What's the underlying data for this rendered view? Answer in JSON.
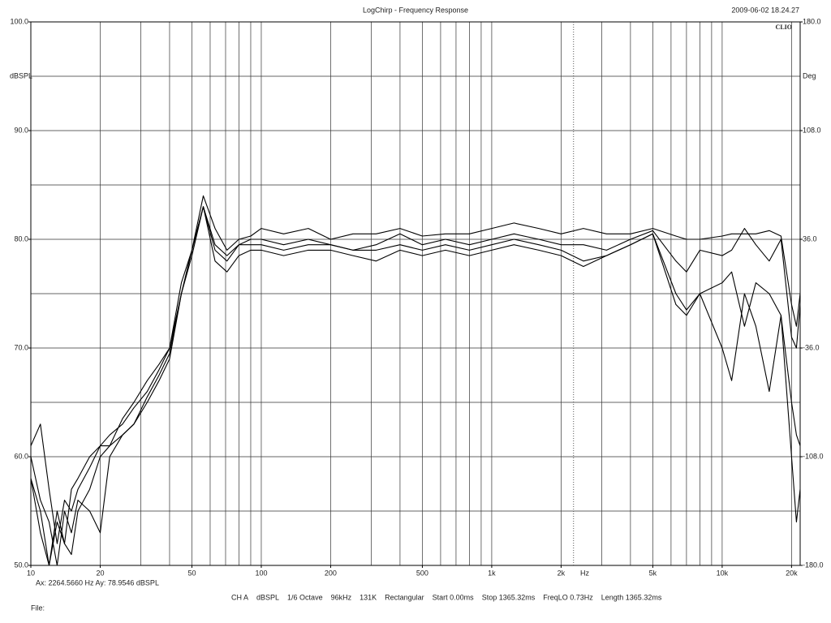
{
  "chart_data": {
    "type": "line",
    "title": "LogChirp - Frequency Response",
    "timestamp": "2009-06-02 18.24.27",
    "logo": "CLIO",
    "xlabel": "Hz",
    "ylabel": "dBSPL",
    "y2label": "Deg",
    "xscale": "log",
    "grid": true,
    "x": [
      10,
      11,
      12,
      13,
      14,
      15,
      16,
      18,
      20,
      22,
      25,
      28,
      32,
      36,
      40,
      45,
      50,
      56,
      63,
      71,
      80,
      90,
      100,
      125,
      160,
      200,
      250,
      315,
      400,
      500,
      630,
      800,
      1000,
      1250,
      1600,
      2000,
      2500,
      3150,
      4000,
      5000,
      6300,
      7000,
      8000,
      10000,
      11000,
      12500,
      14000,
      16000,
      18000,
      20000,
      21000,
      21800
    ],
    "series": [
      {
        "color": "#000000",
        "values": [
          61,
          63,
          57,
          52,
          56,
          55,
          57,
          59,
          61,
          61,
          63.5,
          65,
          67,
          68.5,
          70,
          76,
          79,
          84,
          81,
          79,
          80,
          80.3,
          81,
          80.5,
          81,
          80,
          80.5,
          80.5,
          81,
          80.3,
          80.5,
          80.5,
          81,
          81.5,
          81,
          80.5,
          81,
          80.5,
          80.5,
          81,
          80.3,
          80,
          80,
          80.3,
          80.5,
          80.5,
          80.5,
          80.8,
          80.3,
          74,
          72,
          75
        ]
      },
      {
        "color": "#000000",
        "values": [
          58,
          55,
          50,
          54,
          52,
          57,
          58,
          60,
          61,
          62,
          63,
          64.5,
          66,
          68,
          70,
          75,
          79,
          83,
          79.5,
          78.5,
          79.5,
          80,
          80,
          79.5,
          80,
          79.5,
          79,
          79.5,
          80.5,
          79.5,
          80,
          79.5,
          80,
          80.5,
          80,
          79.5,
          79.5,
          79,
          80,
          80.8,
          78,
          77,
          79,
          78.5,
          79,
          81,
          79.5,
          78,
          80,
          71,
          70,
          74
        ]
      },
      {
        "color": "#000000",
        "values": [
          60,
          56,
          54,
          50,
          55,
          53,
          56,
          55,
          53,
          60,
          62,
          63,
          65,
          67,
          69,
          75,
          79,
          83,
          79,
          78,
          79.5,
          79.5,
          79.5,
          79,
          79.5,
          79.5,
          79,
          79,
          79.5,
          79,
          79.5,
          79,
          79.5,
          80,
          79.5,
          79,
          78,
          78.5,
          79.5,
          80.5,
          74,
          73,
          75,
          76,
          77,
          72,
          76,
          75,
          73,
          65,
          62,
          61
        ]
      },
      {
        "color": "#000000",
        "values": [
          58,
          53,
          50,
          55,
          52,
          51,
          55,
          57,
          60,
          61,
          62,
          63,
          65.5,
          67.5,
          69.5,
          75,
          78.5,
          83,
          78,
          77,
          78.5,
          79,
          79,
          78.5,
          79,
          79,
          78.5,
          78,
          79,
          78.5,
          79,
          78.5,
          79,
          79.5,
          79,
          78.5,
          77.5,
          78.5,
          79.5,
          80.5,
          75,
          73.5,
          75,
          70,
          67,
          75,
          72,
          66,
          73,
          60,
          54,
          57
        ]
      }
    ],
    "xlim": [
      10,
      21800
    ],
    "xticks": [
      10,
      20,
      50,
      100,
      200,
      500,
      {
        "value": 1000,
        "label": "1k"
      },
      {
        "value": 2000,
        "label": "2k"
      },
      {
        "value": 5000,
        "label": "5k"
      },
      {
        "value": 10000,
        "label": "10k"
      },
      {
        "value": 20000,
        "label": "20k"
      }
    ],
    "xgrid": [
      10,
      20,
      30,
      40,
      50,
      60,
      70,
      80,
      90,
      100,
      200,
      300,
      400,
      500,
      600,
      700,
      800,
      900,
      1000,
      2000,
      3000,
      4000,
      5000,
      6000,
      7000,
      8000,
      9000,
      10000,
      20000
    ],
    "ylim": [
      50,
      100
    ],
    "yticks": [
      {
        "value": 50,
        "label": "50.0"
      },
      {
        "value": 60,
        "label": "60.0"
      },
      {
        "value": 70,
        "label": "70.0"
      },
      {
        "value": 80,
        "label": "80.0"
      },
      {
        "value": 90,
        "label": "90.0"
      },
      {
        "value": 100,
        "label": "100.0"
      }
    ],
    "ygrid": [
      50,
      55,
      60,
      65,
      70,
      75,
      80,
      85,
      90,
      95,
      100
    ],
    "y2lim": [
      -180,
      180
    ],
    "y2ticks": [
      {
        "value": -180,
        "label": "-180.0"
      },
      {
        "value": -108,
        "label": "-108.0"
      },
      {
        "value": -36,
        "label": "-36.0"
      },
      {
        "value": 36,
        "label": "36.0"
      },
      {
        "value": 108,
        "label": "108.0"
      },
      {
        "value": 180,
        "label": "180.0"
      }
    ],
    "cursor": {
      "x": 2264.566,
      "label": "Ax: 2264.5660 Hz   Ay: 78.9546 dBSPL"
    },
    "status": [
      "CH A",
      "dBSPL",
      "1/6 Octave",
      "96kHz",
      "131K",
      "Rectangular",
      "Start 0.00ms",
      "Stop 1365.32ms",
      "FreqLO 0.73Hz",
      "Length 1365.32ms"
    ],
    "file_label": "File:"
  }
}
